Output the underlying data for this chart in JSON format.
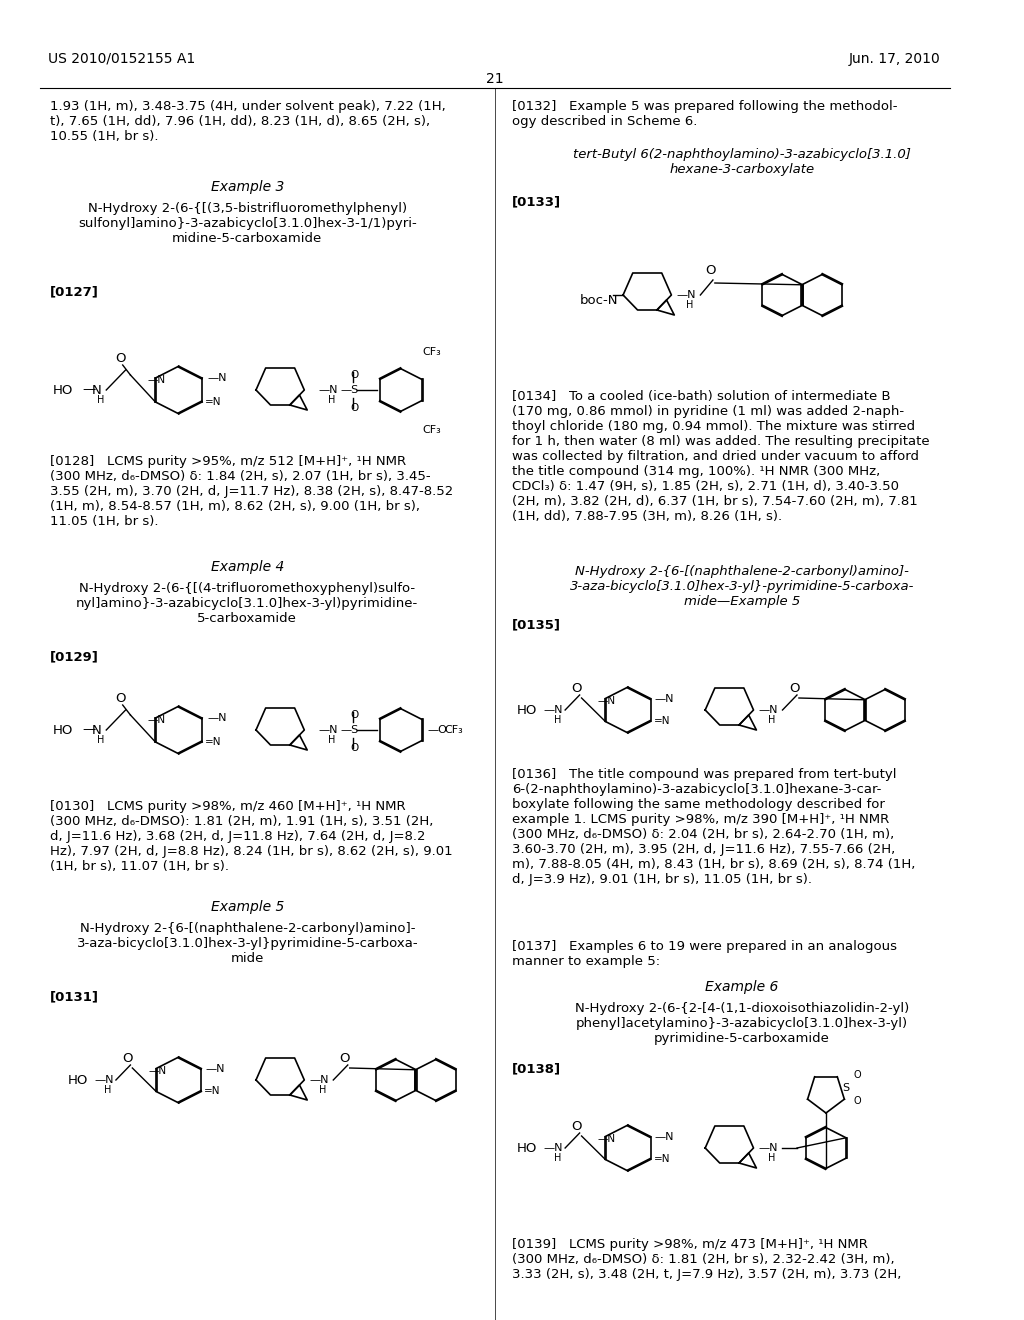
{
  "background_color": "#ffffff",
  "page_number": "21",
  "header_left": "US 2010/0152155 A1",
  "header_right": "Jun. 17, 2010",
  "left_column": {
    "intro_text": "1.93 (1H, m), 3.48-3.75 (4H, under solvent peak), 7.22 (1H,\nt), 7.65 (1H, dd), 7.96 (1H, dd), 8.23 (1H, d), 8.65 (2H, s),\n10.55 (1H, br s).",
    "example3_title": "Example 3",
    "example3_compound": "N-Hydroxy 2-(6-{[(3,5-bistrifluoromethylphenyl)\nsulfonyl]amino}-3-azabicyclo[3.1.0]hex-3-1/1)pyri-\nmidine-5-carboxamide",
    "ref0127": "[0127]",
    "ref0128": "[0128]   LCMS purity >95%, m/z 512 [M+H]⁺, ¹H NMR\n(300 MHz, d₆-DMSO) δ: 1.84 (2H, s), 2.07 (1H, br s), 3.45-\n3.55 (2H, m), 3.70 (2H, d, J=11.7 Hz), 8.38 (2H, s), 8.47-8.52\n(1H, m), 8.54-8.57 (1H, m), 8.62 (2H, s), 9.00 (1H, br s),\n11.05 (1H, br s).",
    "example4_title": "Example 4",
    "example4_compound": "N-Hydroxy 2-(6-{[(4-trifluoromethoxyphenyl)sulfo-\nnyl]amino}-3-azabicyclo[3.1.0]hex-3-yl)pyrimidine-\n5-carboxamide",
    "ref0129": "[0129]",
    "ref0130": "[0130]   LCMS purity >98%, m/z 460 [M+H]⁺, ¹H NMR\n(300 MHz, d₆-DMSO): 1.81 (2H, m), 1.91 (1H, s), 3.51 (2H,\nd, J=11.6 Hz), 3.68 (2H, d, J=11.8 Hz), 7.64 (2H, d, J=8.2\nHz), 7.97 (2H, d, J=8.8 Hz), 8.24 (1H, br s), 8.62 (2H, s), 9.01\n(1H, br s), 11.07 (1H, br s).",
    "example5_title": "Example 5",
    "example5_compound": "N-Hydroxy 2-{6-[(naphthalene-2-carbonyl)amino]-\n3-aza-bicyclo[3.1.0]hex-3-yl}pyrimidine-5-carboxa-\nmide",
    "ref0131": "[0131]"
  },
  "right_column": {
    "ref0132": "[0132]   Example 5 was prepared following the methodol-\nogy described in Scheme 6.",
    "intermediate_title": "tert-Butyl 6(2-naphthoylamino)-3-azabicyclo[3.1.0]\nhexane-3-carboxylate",
    "ref0133": "[0133]",
    "ref0134": "[0134]   To a cooled (ice-bath) solution of intermediate B\n(170 mg, 0.86 mmol) in pyridine (1 ml) was added 2-naph-\nthoyl chloride (180 mg, 0.94 mmol). The mixture was stirred\nfor 1 h, then water (8 ml) was added. The resulting precipitate\nwas collected by filtration, and dried under vacuum to afford\nthe title compound (314 mg, 100%). ¹H NMR (300 MHz,\nCDCl₃) δ: 1.47 (9H, s), 1.85 (2H, s), 2.71 (1H, d), 3.40-3.50\n(2H, m), 3.82 (2H, d), 6.37 (1H, br s), 7.54-7.60 (2H, m), 7.81\n(1H, dd), 7.88-7.95 (3H, m), 8.26 (1H, s).",
    "example5_name_title": "N-Hydroxy 2-{6-[(naphthalene-2-carbonyl)amino]-\n3-aza-bicyclo[3.1.0]hex-3-yl}-pyrimidine-5-carboxa-\nmide—Example 5",
    "ref0135": "[0135]",
    "ref0136": "[0136]   The title compound was prepared from tert-butyl\n6-(2-naphthoylamino)-3-azabicyclo[3.1.0]hexane-3-car-\nboxylate following the same methodology described for\nexample 1. LCMS purity >98%, m/z 390 [M+H]⁺, ¹H NMR\n(300 MHz, d₆-DMSO) δ: 2.04 (2H, br s), 2.64-2.70 (1H, m),\n3.60-3.70 (2H, m), 3.95 (2H, d, J=11.6 Hz), 7.55-7.66 (2H,\nm), 7.88-8.05 (4H, m), 8.43 (1H, br s), 8.69 (2H, s), 8.74 (1H,\nd, J=3.9 Hz), 9.01 (1H, br s), 11.05 (1H, br s).",
    "ref0137": "[0137]   Examples 6 to 19 were prepared in an analogous\nmanner to example 5:",
    "example6_title": "Example 6",
    "example6_compound": "N-Hydroxy 2-(6-{2-[4-(1,1-dioxoisothiazolidin-2-yl)\nphenyl]acetylamino}-3-azabicyclo[3.1.0]hex-3-yl)\npyrimidine-5-carboxamide",
    "ref0138": "[0138]",
    "ref0139": "[0139]   LCMS purity >98%, m/z 473 [M+H]⁺, ¹H NMR\n(300 MHz, d₆-DMSO) δ: 1.81 (2H, br s), 2.32-2.42 (3H, m),\n3.33 (2H, s), 3.48 (2H, t, J=7.9 Hz), 3.57 (2H, m), 3.73 (2H,"
  }
}
